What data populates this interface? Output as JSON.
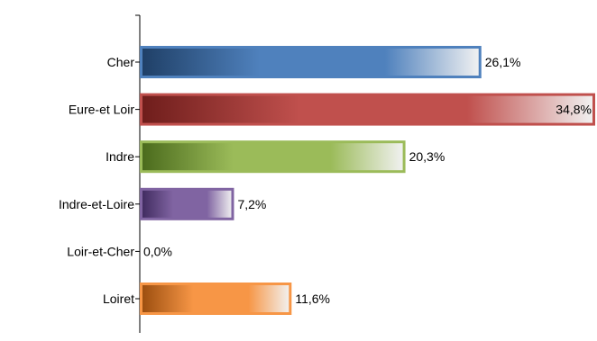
{
  "chart_data": {
    "type": "bar",
    "orientation": "horizontal",
    "categories": [
      "Cher",
      "Eure-et Loir",
      "Indre",
      "Indre-et-Loire",
      "Loir-et-Cher",
      "Loiret"
    ],
    "values": [
      26.1,
      34.8,
      20.3,
      7.2,
      0.0,
      11.6
    ],
    "value_labels": [
      "26,1%",
      "34,8%",
      "20,3%",
      "7,2%",
      "0,0%",
      "11,6%"
    ],
    "colors": [
      "#4f81bd",
      "#c0504d",
      "#9bbb59",
      "#8064a2",
      "#4bacc6",
      "#f79646"
    ],
    "dark_colors": [
      "#1f3f66",
      "#6e1d1b",
      "#4a6a1c",
      "#3f2a5e",
      "#1f6f86",
      "#9a4d0e"
    ],
    "grid": false,
    "legend": "none"
  }
}
